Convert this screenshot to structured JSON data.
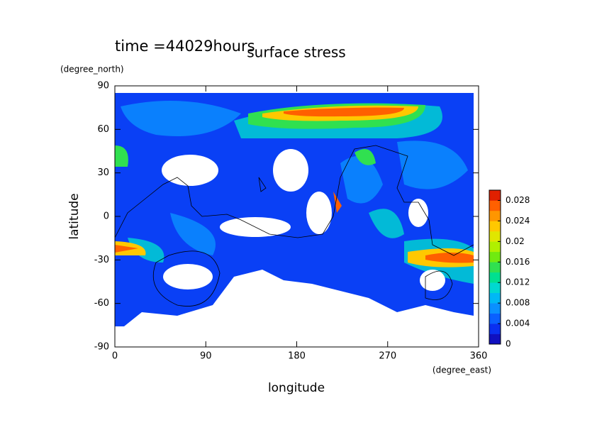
{
  "chart_data": {
    "type": "contour-map",
    "title": "surface stress",
    "subtitle": "time =44029hours",
    "xlabel": "longitude",
    "xunit": "(degree_east)",
    "ylabel": "latitude",
    "yunit": "(degree_north)",
    "xlim": [
      0,
      360
    ],
    "xticks": [
      0,
      90,
      180,
      270,
      360
    ],
    "ylim": [
      -90,
      90
    ],
    "yticks": [
      -90,
      -60,
      -30,
      0,
      30,
      60,
      90
    ],
    "colorbar": {
      "lim": [
        0,
        0.03
      ],
      "ticks": [
        0,
        0.004,
        0.008,
        0.012,
        0.016,
        0.02,
        0.024,
        0.028
      ],
      "colors": [
        "#1010c0",
        "#0a30f0",
        "#0a60ff",
        "#0a90ff",
        "#00b8f5",
        "#00d8d0",
        "#00e090",
        "#30e050",
        "#70ea10",
        "#b0f000",
        "#e0e600",
        "#ffc800",
        "#ff9600",
        "#ff6000",
        "#e02000"
      ]
    }
  }
}
